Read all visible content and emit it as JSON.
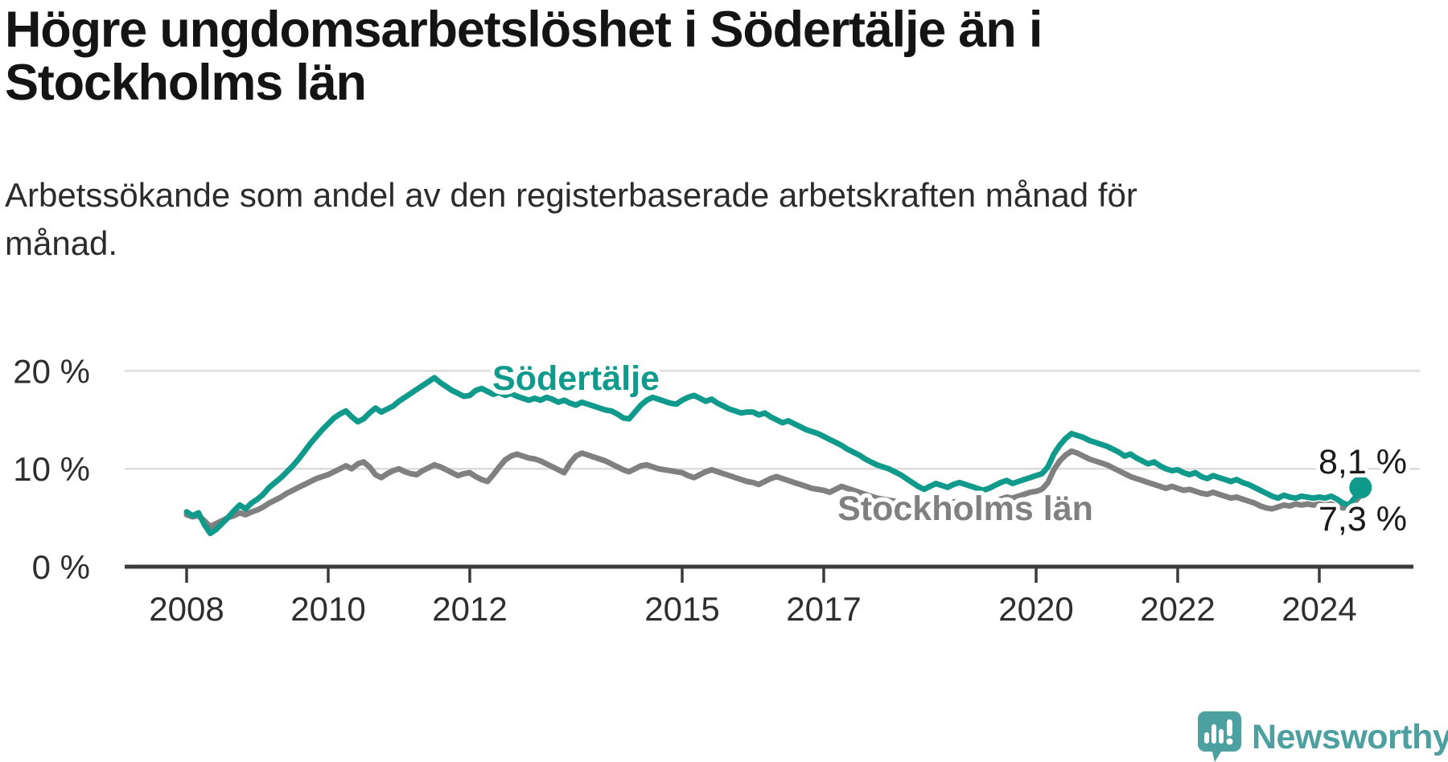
{
  "header": {
    "title_line1": "Högre ungdomsarbetslöshet i Södertälje än i",
    "title_line2": "Stockholms län",
    "subtitle_line1": "Arbetssökande som andel av den registerbaserade arbetskraften månad för",
    "subtitle_line2": "månad."
  },
  "branding": {
    "logo_text": "Newsworthy",
    "logo_color": "#4da0a0",
    "logo_icon": "speech-bubble-bar-chart-icon"
  },
  "chart_data": {
    "type": "line",
    "unit": "percent",
    "frequency": "monthly",
    "x_start": "2008-01",
    "x_end": "2024-08",
    "grid": "horizontal",
    "legend_position": "inline-labels",
    "colors": {
      "soedertaelje": "#109a8b",
      "stockholms_laen": "#808080",
      "gridline": "#dcdcdc",
      "axis": "#3b3b3b",
      "tick_text": "#2e2e2e",
      "end_label_text": "#1a1a1a"
    },
    "y_axis": {
      "ticks": [
        {
          "value": 0,
          "label": "0 %"
        },
        {
          "value": 10,
          "label": "10 %"
        },
        {
          "value": 20,
          "label": "20 %"
        }
      ],
      "range": [
        0,
        22
      ]
    },
    "x_axis": {
      "ticks": [
        {
          "year": 2008,
          "label": "2008"
        },
        {
          "year": 2010,
          "label": "2010"
        },
        {
          "year": 2012,
          "label": "2012"
        },
        {
          "year": 2015,
          "label": "2015"
        },
        {
          "year": 2017,
          "label": "2017"
        },
        {
          "year": 2020,
          "label": "2020"
        },
        {
          "year": 2022,
          "label": "2022"
        },
        {
          "year": 2024,
          "label": "2024"
        }
      ]
    },
    "series": [
      {
        "name": "Stockholms län",
        "color": "#808080",
        "end_label": "7,3 %",
        "end_value": 7.3,
        "values": [
          5.3,
          5.1,
          5.2,
          4.7,
          4.1,
          4.4,
          4.7,
          5.0,
          5.2,
          5.5,
          5.3,
          5.6,
          5.8,
          6.1,
          6.5,
          6.8,
          7.1,
          7.5,
          7.8,
          8.1,
          8.4,
          8.7,
          9.0,
          9.2,
          9.4,
          9.7,
          10.0,
          10.3,
          10.0,
          10.5,
          10.7,
          10.2,
          9.4,
          9.1,
          9.5,
          9.8,
          10.0,
          9.7,
          9.5,
          9.4,
          9.8,
          10.1,
          10.4,
          10.2,
          9.9,
          9.6,
          9.3,
          9.5,
          9.6,
          9.2,
          8.9,
          8.7,
          9.4,
          10.2,
          10.9,
          11.3,
          11.5,
          11.3,
          11.1,
          11.0,
          10.8,
          10.5,
          10.2,
          9.9,
          9.6,
          10.6,
          11.3,
          11.6,
          11.4,
          11.2,
          11.0,
          10.8,
          10.5,
          10.2,
          9.9,
          9.7,
          10.0,
          10.3,
          10.4,
          10.2,
          10.0,
          9.9,
          9.8,
          9.7,
          9.6,
          9.3,
          9.1,
          9.4,
          9.7,
          9.9,
          9.7,
          9.5,
          9.3,
          9.1,
          8.9,
          8.7,
          8.6,
          8.4,
          8.7,
          9.0,
          9.2,
          9.0,
          8.8,
          8.6,
          8.4,
          8.2,
          8.0,
          7.9,
          7.8,
          7.6,
          7.9,
          8.2,
          8.0,
          7.8,
          7.6,
          7.4,
          7.2,
          7.0,
          6.9,
          6.8,
          6.7,
          6.6,
          6.5,
          6.4,
          6.3,
          6.2,
          6.4,
          6.6,
          6.5,
          6.4,
          6.6,
          6.7,
          6.6,
          6.5,
          6.4,
          6.3,
          6.5,
          6.7,
          6.9,
          7.1,
          7.0,
          7.2,
          7.4,
          7.6,
          7.7,
          7.9,
          8.6,
          9.9,
          10.8,
          11.4,
          11.8,
          11.6,
          11.3,
          11.0,
          10.8,
          10.6,
          10.4,
          10.1,
          9.8,
          9.5,
          9.2,
          9.0,
          8.8,
          8.6,
          8.4,
          8.2,
          8.0,
          8.2,
          8.0,
          7.8,
          7.9,
          7.7,
          7.5,
          7.4,
          7.6,
          7.4,
          7.2,
          7.0,
          7.1,
          6.9,
          6.7,
          6.5,
          6.2,
          6.0,
          5.9,
          6.1,
          6.3,
          6.2,
          6.4,
          6.3,
          6.4,
          6.3,
          6.4,
          6.3,
          6.4,
          6.2,
          6.0,
          6.1,
          6.6,
          7.3
        ]
      },
      {
        "name": "Södertälje",
        "color": "#109a8b",
        "end_label": "8,1 %",
        "end_value": 8.1,
        "end_dot": true,
        "values": [
          5.6,
          5.2,
          5.5,
          4.3,
          3.4,
          3.8,
          4.4,
          5.0,
          5.7,
          6.3,
          5.9,
          6.5,
          6.9,
          7.4,
          8.1,
          8.6,
          9.1,
          9.7,
          10.3,
          11.0,
          11.8,
          12.6,
          13.3,
          14.0,
          14.6,
          15.2,
          15.6,
          15.9,
          15.3,
          14.8,
          15.1,
          15.7,
          16.2,
          15.8,
          16.1,
          16.4,
          16.9,
          17.3,
          17.7,
          18.1,
          18.5,
          18.9,
          19.3,
          18.8,
          18.4,
          18.0,
          17.7,
          17.4,
          17.5,
          18.0,
          18.2,
          17.9,
          17.6,
          17.8,
          17.5,
          17.7,
          17.4,
          17.2,
          17.0,
          17.2,
          17.0,
          17.3,
          17.1,
          16.8,
          17.0,
          16.7,
          16.5,
          16.8,
          16.6,
          16.4,
          16.2,
          16.0,
          15.9,
          15.6,
          15.2,
          15.1,
          15.8,
          16.5,
          17.0,
          17.3,
          17.1,
          16.9,
          16.7,
          16.6,
          17.0,
          17.3,
          17.5,
          17.2,
          16.9,
          17.1,
          16.7,
          16.4,
          16.1,
          15.9,
          15.7,
          15.8,
          15.8,
          15.5,
          15.7,
          15.3,
          15.0,
          14.7,
          14.9,
          14.6,
          14.3,
          14.0,
          13.8,
          13.6,
          13.3,
          13.0,
          12.7,
          12.4,
          12.0,
          11.7,
          11.4,
          11.0,
          10.7,
          10.4,
          10.2,
          10.0,
          9.7,
          9.4,
          9.0,
          8.6,
          8.2,
          7.9,
          8.2,
          8.5,
          8.3,
          8.1,
          8.4,
          8.6,
          8.4,
          8.2,
          8.0,
          7.8,
          8.0,
          8.3,
          8.6,
          8.8,
          8.5,
          8.7,
          8.9,
          9.1,
          9.3,
          9.5,
          10.2,
          11.5,
          12.4,
          13.1,
          13.6,
          13.4,
          13.2,
          12.9,
          12.7,
          12.5,
          12.3,
          12.0,
          11.7,
          11.3,
          11.5,
          11.1,
          10.8,
          10.5,
          10.7,
          10.3,
          10.0,
          9.8,
          9.9,
          9.6,
          9.4,
          9.6,
          9.2,
          9.0,
          9.3,
          9.1,
          8.9,
          8.7,
          8.9,
          8.6,
          8.4,
          8.1,
          7.8,
          7.5,
          7.2,
          7.0,
          7.3,
          7.1,
          7.0,
          7.2,
          7.1,
          7.0,
          7.1,
          7.0,
          7.2,
          6.9,
          6.5,
          6.3,
          7.0,
          8.1
        ]
      }
    ]
  }
}
